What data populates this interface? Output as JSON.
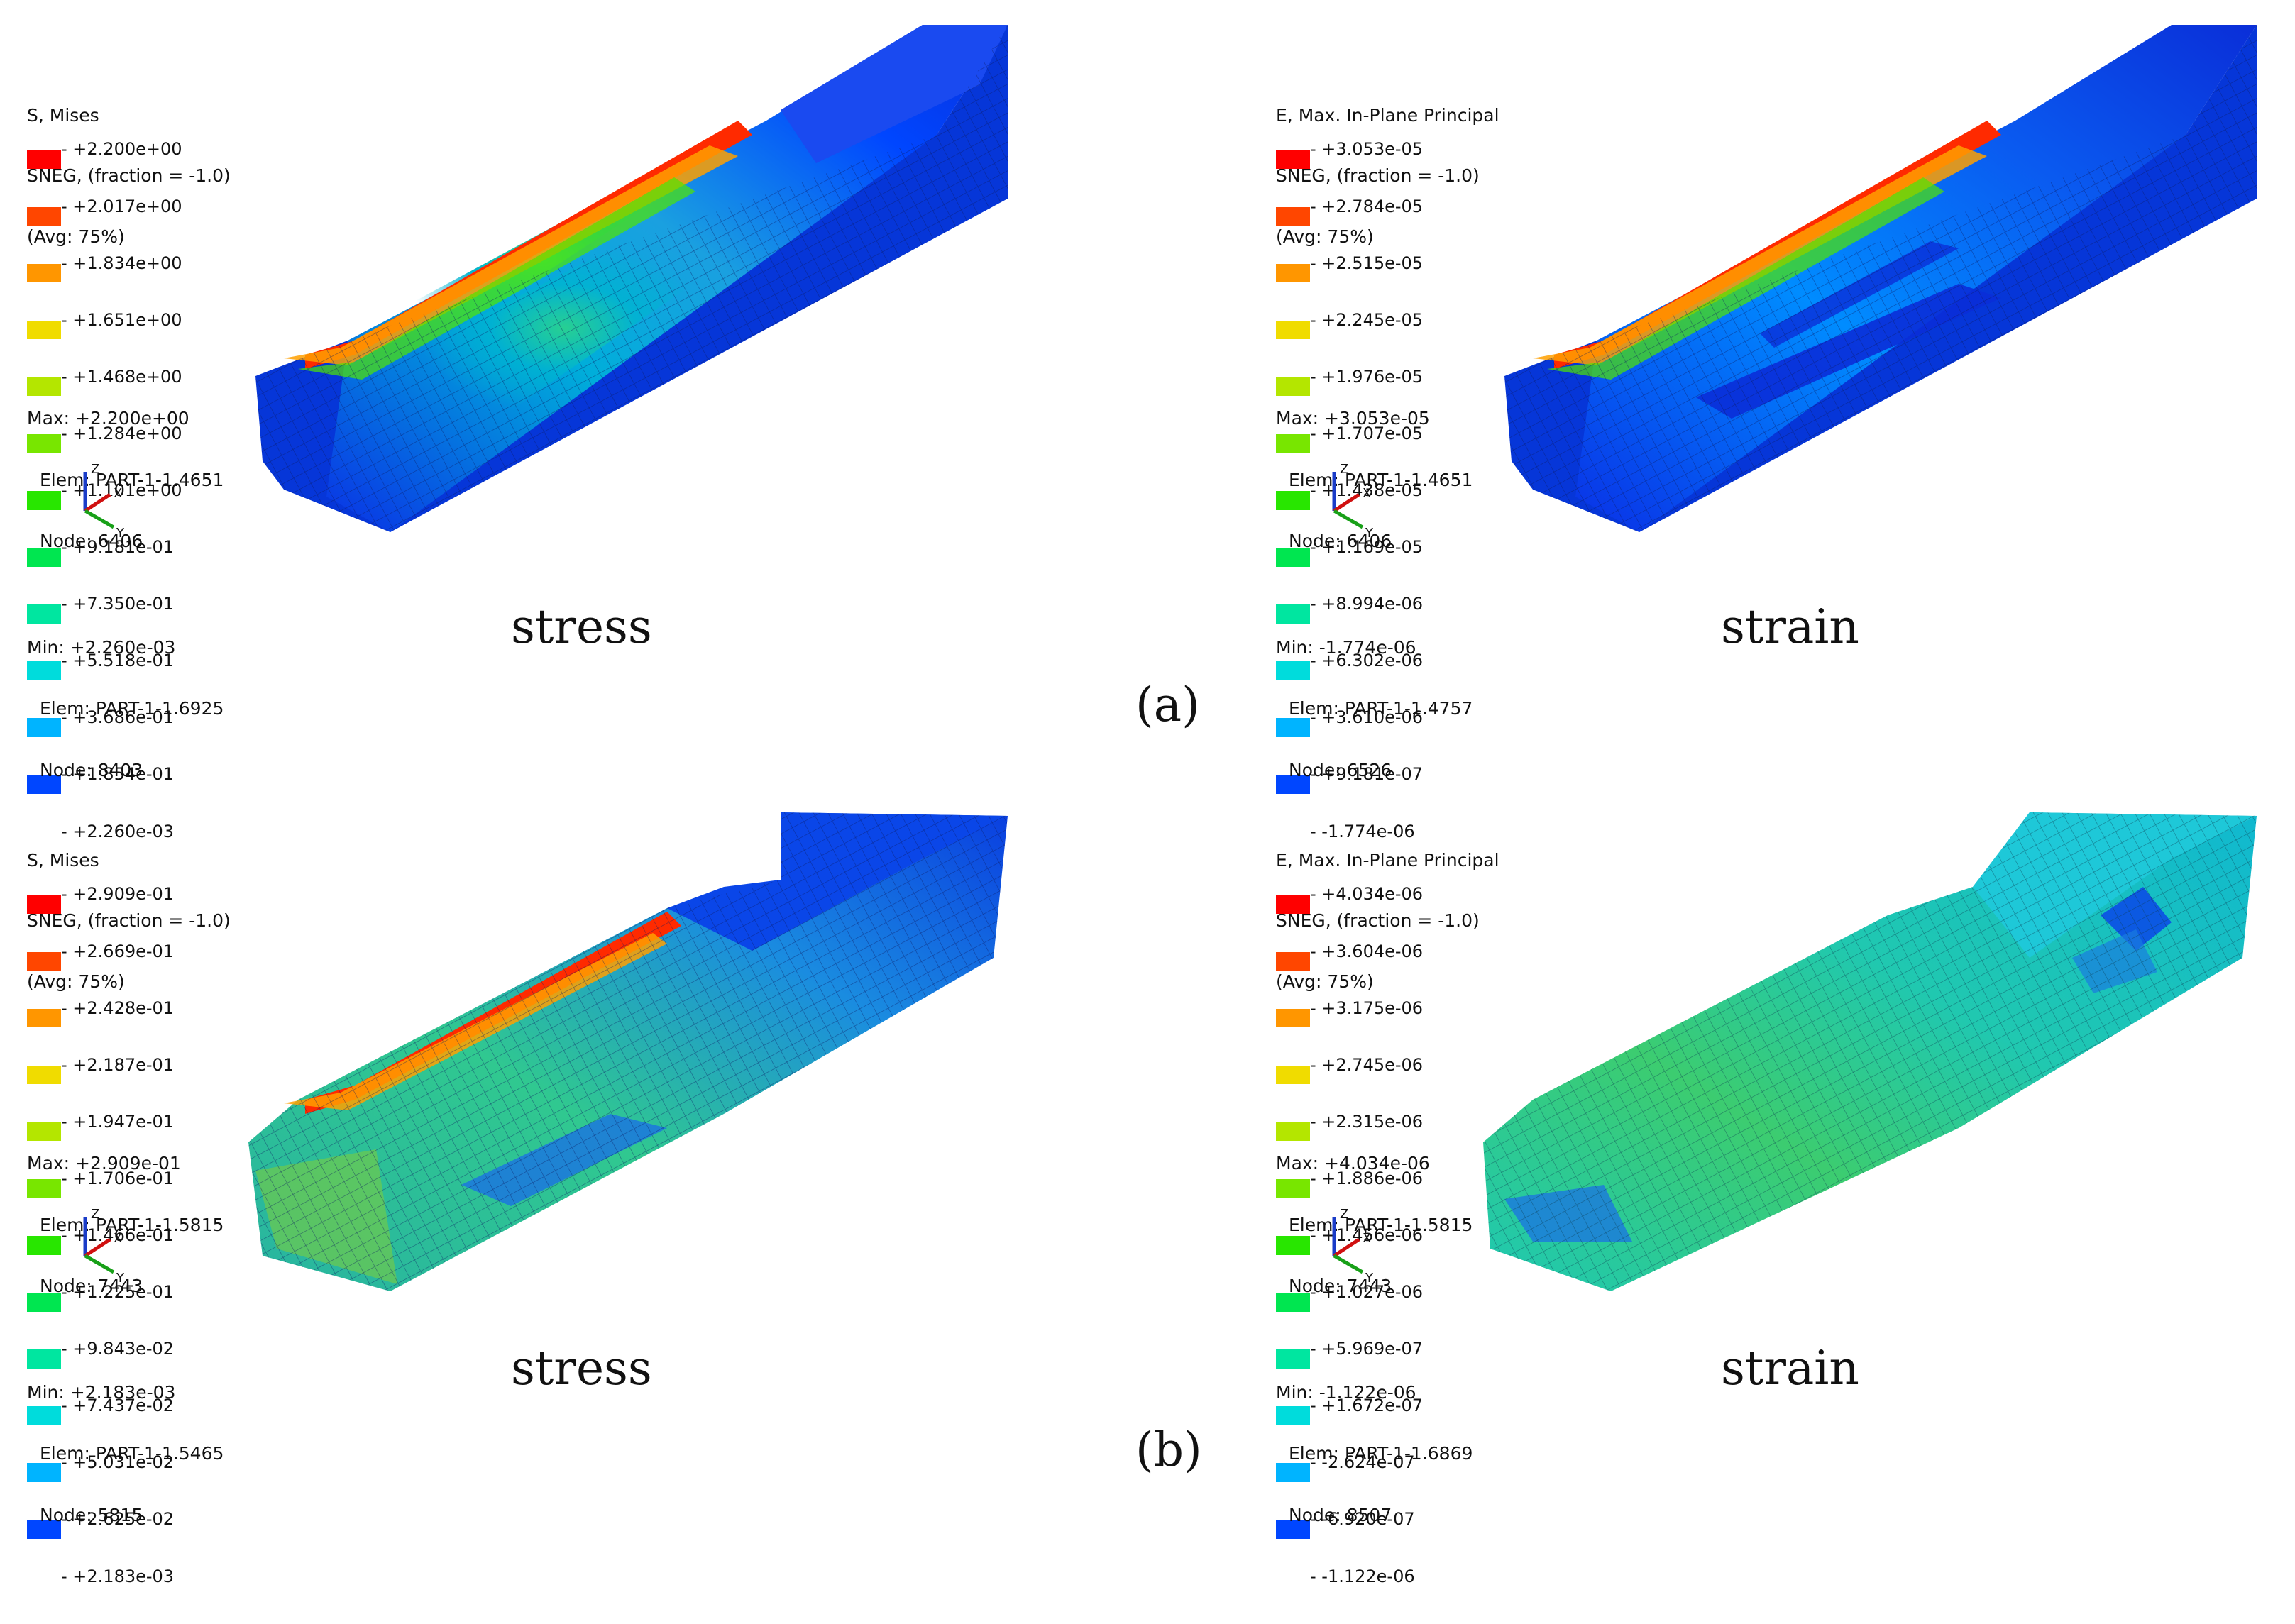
{
  "colorscale": [
    "#0000ff",
    "#0046ff",
    "#008cff",
    "#00b4ff",
    "#00dcdc",
    "#00e6a0",
    "#00e650",
    "#28e600",
    "#78e600",
    "#b4e600",
    "#f0dc00",
    "#ff9600",
    "#ff4600",
    "#ff0000"
  ],
  "panels": [
    {
      "id": "a-stress",
      "variable": "S, Mises",
      "sneg": "SNEG, (fraction = -1.0)",
      "avg": "(Avg: 75%)",
      "ticks": [
        "+2.200e+00",
        "+2.017e+00",
        "+1.834e+00",
        "+1.651e+00",
        "+1.468e+00",
        "+1.284e+00",
        "+1.101e+00",
        "+9.181e-01",
        "+7.350e-01",
        "+5.518e-01",
        "+3.686e-01",
        "+1.854e-01",
        "+2.260e-03"
      ],
      "max": "Max: +2.200e+00",
      "max_elem": "Elem: PART-1-1.4651",
      "max_node": "Node: 6406",
      "min": "Min: +2.260e-03",
      "min_elem": "Elem: PART-1-1.6925",
      "min_node": "Node: 8403",
      "caption": "stress",
      "triad": {
        "z": "Z",
        "x": "X",
        "y": "Y"
      }
    },
    {
      "id": "a-strain",
      "variable": "E, Max. In-Plane Principal",
      "sneg": "SNEG, (fraction = -1.0)",
      "avg": "(Avg: 75%)",
      "ticks": [
        "+3.053e-05",
        "+2.784e-05",
        "+2.515e-05",
        "+2.245e-05",
        "+1.976e-05",
        "+1.707e-05",
        "+1.438e-05",
        "+1.169e-05",
        "+8.994e-06",
        "+6.302e-06",
        "+3.610e-06",
        "+9.181e-07",
        "-1.774e-06"
      ],
      "max": "Max: +3.053e-05",
      "max_elem": "Elem: PART-1-1.4651",
      "max_node": "Node: 6406",
      "min": "Min: -1.774e-06",
      "min_elem": "Elem: PART-1-1.4757",
      "min_node": "Node: 6526",
      "caption": "strain",
      "triad": {
        "z": "Z",
        "x": "X",
        "y": "Y"
      }
    },
    {
      "id": "b-stress",
      "variable": "S, Mises",
      "sneg": "SNEG, (fraction = -1.0)",
      "avg": "(Avg: 75%)",
      "ticks": [
        "+2.909e-01",
        "+2.669e-01",
        "+2.428e-01",
        "+2.187e-01",
        "+1.947e-01",
        "+1.706e-01",
        "+1.466e-01",
        "+1.225e-01",
        "+9.843e-02",
        "+7.437e-02",
        "+5.031e-02",
        "+2.625e-02",
        "+2.183e-03"
      ],
      "max": "Max: +2.909e-01",
      "max_elem": "Elem: PART-1-1.5815",
      "max_node": "Node: 7443",
      "min": "Min: +2.183e-03",
      "min_elem": "Elem: PART-1-1.5465",
      "min_node": "Node: 5815",
      "caption": "stress",
      "triad": {
        "z": "Z",
        "x": "X",
        "y": "Y"
      }
    },
    {
      "id": "b-strain",
      "variable": "E, Max. In-Plane Principal",
      "sneg": "SNEG, (fraction = -1.0)",
      "avg": "(Avg: 75%)",
      "ticks": [
        "+4.034e-06",
        "+3.604e-06",
        "+3.175e-06",
        "+2.745e-06",
        "+2.315e-06",
        "+1.886e-06",
        "+1.456e-06",
        "+1.027e-06",
        "+5.969e-07",
        "+1.672e-07",
        "-2.624e-07",
        "-6.920e-07",
        "-1.122e-06"
      ],
      "max": "Max: +4.034e-06",
      "max_elem": "Elem: PART-1-1.5815",
      "max_node": "Node: 7443",
      "min": "Min: -1.122e-06",
      "min_elem": "Elem: PART-1-1.6869",
      "min_node": "Node: 8507",
      "caption": "strain",
      "triad": {
        "z": "Z",
        "x": "X",
        "y": "Y"
      }
    }
  ],
  "subfigures": {
    "a": "(a)",
    "b": "(b)"
  }
}
